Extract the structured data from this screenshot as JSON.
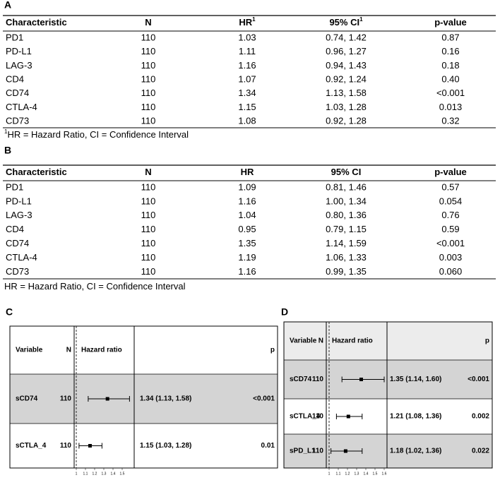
{
  "panels": {
    "A": {
      "label": "A",
      "header": [
        {
          "text": "Characteristic"
        },
        {
          "text": "N"
        },
        {
          "text": "HR",
          "sup": "1"
        },
        {
          "text": "95% CI",
          "sup": "1"
        },
        {
          "text": "p-value"
        }
      ],
      "rows": [
        [
          "PD1",
          "110",
          "1.03",
          "0.74, 1.42",
          "0.87"
        ],
        [
          "PD-L1",
          "110",
          "1.11",
          "0.96, 1.27",
          "0.16"
        ],
        [
          "LAG-3",
          "110",
          "1.16",
          "0.94, 1.43",
          "0.18"
        ],
        [
          "CD4",
          "110",
          "1.07",
          "0.92, 1.24",
          "0.40"
        ],
        [
          "CD74",
          "110",
          "1.34",
          "1.13, 1.58",
          "<0.001"
        ],
        [
          "CTLA-4",
          "110",
          "1.15",
          "1.03, 1.28",
          "0.013"
        ],
        [
          "CD73",
          "110",
          "1.08",
          "0.92, 1.28",
          "0.32"
        ]
      ],
      "footnote": {
        "sup": "1",
        "text": "HR = Hazard Ratio, CI = Confidence Interval"
      }
    },
    "B": {
      "label": "B",
      "header": [
        {
          "text": "Characteristic"
        },
        {
          "text": "N"
        },
        {
          "text": "HR"
        },
        {
          "text": "95% CI"
        },
        {
          "text": "p-value"
        }
      ],
      "rows": [
        [
          "PD1",
          "110",
          "1.09",
          "0.81, 1.46",
          "0.57"
        ],
        [
          "PD-L1",
          "110",
          "1.16",
          "1.00, 1.34",
          "0.054"
        ],
        [
          "LAG-3",
          "110",
          "1.04",
          "0.80, 1.36",
          "0.76"
        ],
        [
          "CD4",
          "110",
          "0.95",
          "0.79, 1.15",
          "0.59"
        ],
        [
          "CD74",
          "110",
          "1.35",
          "1.14, 1.59",
          "<0.001"
        ],
        [
          "CTLA-4",
          "110",
          "1.19",
          "1.06, 1.33",
          "0.003"
        ],
        [
          "CD73",
          "110",
          "1.16",
          "0.99, 1.35",
          "0.060"
        ]
      ],
      "footnote": {
        "text": "HR = Hazard Ratio, CI = Confidence Interval"
      }
    },
    "C": {
      "label": "C",
      "header": {
        "variable": "Variable",
        "n": "N",
        "effect": "Hazard ratio",
        "p": "p"
      },
      "rows": [
        {
          "variable": "sCD74",
          "n": "110",
          "estimate": 1.34,
          "lower": 1.13,
          "upper": 1.58,
          "label": "1.34 (1.13, 1.58)",
          "p": "<0.001"
        },
        {
          "variable": "sCTLA_4",
          "n": "110",
          "estimate": 1.15,
          "lower": 1.03,
          "upper": 1.28,
          "label": "1.15 (1.03, 1.28)",
          "p": "0.01"
        }
      ],
      "xlim": [
        1,
        1.6
      ],
      "xticks": [
        1,
        1.1,
        1.2,
        1.3,
        1.4,
        1.5
      ]
    },
    "D": {
      "label": "D",
      "header": {
        "variable": "Variable",
        "n": "N",
        "effect": "Hazard ratio",
        "p": "p"
      },
      "rows": [
        {
          "variable": "sCD74",
          "n": "110",
          "estimate": 1.35,
          "lower": 1.14,
          "upper": 1.6,
          "label": "1.35 (1.14, 1.60)",
          "p": "<0.001"
        },
        {
          "variable": "sCTLA_4",
          "n": "110",
          "estimate": 1.21,
          "lower": 1.08,
          "upper": 1.36,
          "label": "1.21 (1.08, 1.36)",
          "p": "0.002"
        },
        {
          "variable": "sPD_L1",
          "n": "110",
          "estimate": 1.18,
          "lower": 1.02,
          "upper": 1.36,
          "label": "1.18 (1.02, 1.36)",
          "p": "0.022"
        }
      ],
      "xlim": [
        1,
        1.6
      ],
      "xticks": [
        1,
        1.1,
        1.2,
        1.3,
        1.4,
        1.5,
        1.6
      ]
    }
  }
}
